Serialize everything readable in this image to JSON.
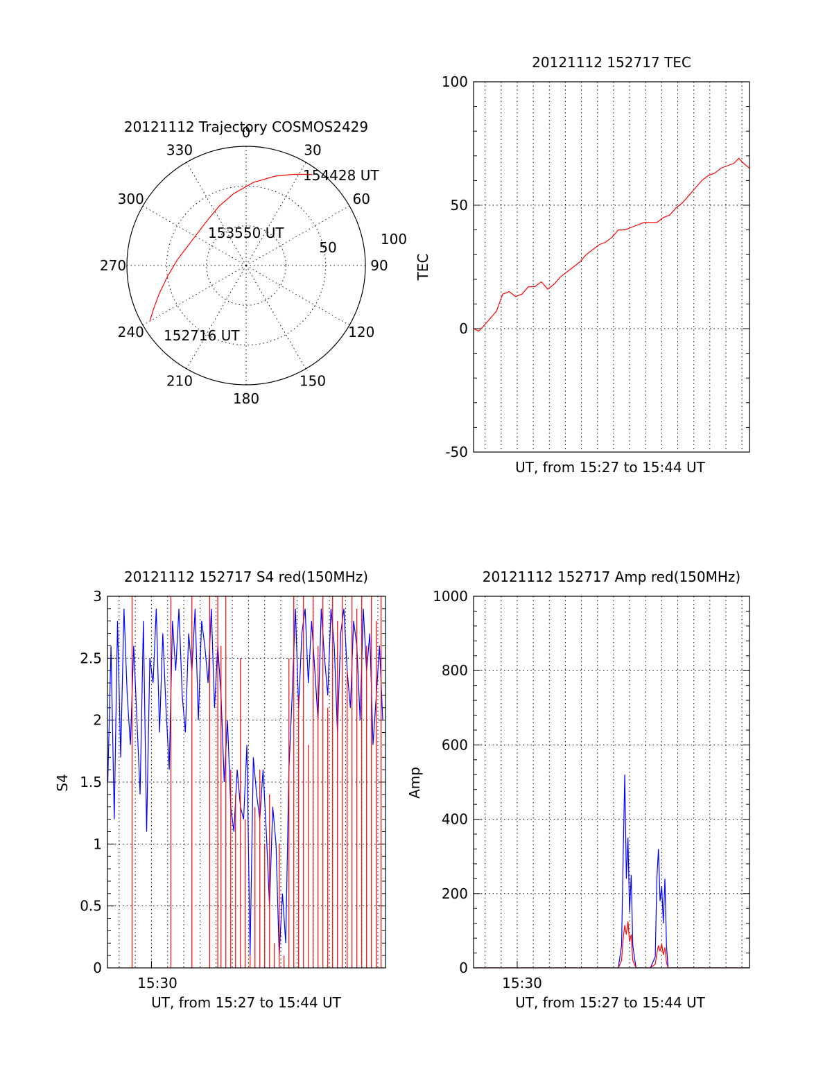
{
  "colors": {
    "red": "#ff0000",
    "blue": "#0000ff",
    "axis": "#000000"
  },
  "chart_data": [
    {
      "type": "polar",
      "title": "20121112 Trajectory COSMOS2429",
      "azimuth_labels": [
        "0",
        "30",
        "60",
        "90",
        "120",
        "150",
        "180",
        "210",
        "240",
        "270",
        "300",
        "330"
      ],
      "radial_labels": [
        "50",
        "100"
      ],
      "series": [
        {
          "color": "red",
          "points": [
            {
              "az": 240,
              "el": 6
            },
            {
              "az": 245,
              "el": 13
            },
            {
              "az": 252,
              "el": 21
            },
            {
              "az": 262,
              "el": 30
            },
            {
              "az": 275,
              "el": 38
            },
            {
              "az": 290,
              "el": 44
            },
            {
              "az": 305,
              "el": 46
            },
            {
              "az": 320,
              "el": 45
            },
            {
              "az": 335,
              "el": 41
            },
            {
              "az": 350,
              "el": 35
            },
            {
              "az": 5,
              "el": 27
            },
            {
              "az": 18,
              "el": 19
            },
            {
              "az": 28,
              "el": 12
            },
            {
              "az": 36,
              "el": 5
            }
          ]
        }
      ],
      "annotations": [
        "154428 UT",
        "153550 UT",
        "152716 UT"
      ]
    },
    {
      "type": "line",
      "title": "20121112 152717 TEC",
      "xlabel": "UT, from 15:27 to 15:44 UT",
      "ylabel": "TEC",
      "ylim": [
        -50,
        100
      ],
      "yticks": [
        "-50",
        "0",
        "50",
        "100"
      ],
      "xlim_minutes": [
        27.28,
        44.47
      ],
      "grid": true,
      "series": [
        {
          "color": "red",
          "x": [
            27.28,
            27.6,
            27.9,
            28.3,
            28.7,
            29.1,
            29.5,
            29.9,
            30.3,
            30.7,
            31.1,
            31.5,
            31.9,
            32.3,
            32.7,
            33.1,
            33.5,
            33.9,
            34.3,
            34.7,
            35.1,
            35.5,
            35.9,
            36.3,
            36.7,
            37.1,
            37.5,
            37.9,
            38.3,
            38.7,
            39.1,
            39.5,
            39.9,
            40.3,
            40.7,
            41.1,
            41.5,
            41.9,
            42.3,
            42.7,
            43.1,
            43.5,
            43.8,
            44.1,
            44.47
          ],
          "y": [
            0,
            -1,
            1,
            4,
            7,
            14,
            15,
            13,
            14,
            17,
            17,
            19,
            16,
            18,
            21,
            23,
            25,
            27,
            30,
            32,
            34,
            35,
            37,
            40,
            40,
            41,
            42,
            43,
            43,
            43,
            45,
            46,
            49,
            51,
            54,
            57,
            60,
            62,
            63,
            65,
            66,
            67,
            69,
            67,
            65
          ]
        }
      ]
    },
    {
      "type": "line",
      "title": "20121112 152717 S4 red(150MHz)",
      "xlabel": "UT, from 15:27 to 15:44 UT",
      "ylabel": "S4",
      "ylim": [
        0,
        3
      ],
      "yticks": [
        "0",
        "0.5",
        "1",
        "1.5",
        "2",
        "2.5",
        "3"
      ],
      "xtick_label": "15:30",
      "xlim_minutes": [
        27.28,
        44.47
      ],
      "grid": true,
      "series": [
        {
          "name": "blue",
          "color": "blue",
          "x": [
            27.3,
            27.5,
            27.7,
            27.9,
            28.1,
            28.3,
            28.5,
            28.7,
            28.9,
            29.1,
            29.3,
            29.5,
            29.7,
            29.9,
            30.1,
            30.3,
            30.5,
            30.7,
            30.9,
            31.1,
            31.3,
            31.5,
            31.7,
            31.9,
            32.1,
            32.3,
            32.5,
            32.7,
            32.9,
            33.1,
            33.3,
            33.5,
            33.7,
            33.9,
            34.1,
            34.3,
            34.5,
            34.7,
            34.9,
            35.1,
            35.3,
            35.5,
            35.7,
            35.9,
            36.1,
            36.3,
            36.5,
            36.7,
            36.9,
            37.1,
            37.3,
            37.5,
            37.7,
            37.9,
            38.1,
            38.3,
            38.5,
            38.7,
            38.9,
            39.1,
            39.3,
            39.5,
            39.7,
            39.9,
            40.1,
            40.3,
            40.5,
            40.7,
            40.9,
            41.1,
            41.3,
            41.5,
            41.7,
            41.9,
            42.1,
            42.3,
            42.5,
            42.7,
            42.9,
            43.1,
            43.3,
            43.5,
            43.7,
            43.9,
            44.1,
            44.3
          ],
          "y": [
            1.5,
            2.6,
            1.2,
            2.8,
            1.7,
            2.9,
            2.2,
            1.8,
            2.6,
            2.0,
            1.4,
            2.8,
            1.1,
            2.5,
            2.3,
            2.9,
            1.9,
            2.7,
            2.1,
            1.6,
            2.8,
            2.4,
            2.9,
            2.2,
            1.9,
            2.7,
            2.4,
            2.9,
            2.0,
            2.8,
            2.6,
            2.3,
            2.9,
            2.1,
            2.6,
            2.2,
            1.5,
            2.0,
            1.3,
            1.1,
            1.6,
            1.3,
            1.2,
            1.8,
            0.1,
            1.7,
            1.4,
            1.2,
            1.6,
            1.1,
            0.5,
            1.3,
            1.0,
            0.1,
            0.6,
            0.2,
            1.6,
            2.2,
            2.9,
            2.1,
            2.7,
            2.9,
            2.3,
            2.8,
            2.4,
            2.0,
            2.9,
            2.5,
            2.2,
            2.9,
            2.6,
            1.9,
            2.7,
            2.9,
            2.4,
            2.1,
            2.8,
            2.6,
            2.0,
            2.9,
            2.4,
            2.7,
            1.8,
            2.2,
            2.6,
            2.0
          ]
        },
        {
          "name": "red",
          "color": "red",
          "x": [
            28.8,
            31.2,
            32.5,
            33.6,
            34.1,
            34.3,
            34.6,
            34.9,
            35.2,
            35.5,
            35.8,
            36.1,
            36.4,
            36.7,
            37.0,
            37.3,
            37.6,
            37.9,
            38.2,
            38.5,
            38.8,
            39.1,
            39.4,
            39.7,
            40.0,
            40.3,
            40.6,
            40.9,
            41.2,
            41.5,
            41.8,
            42.1,
            42.4,
            42.7,
            43.0,
            43.3,
            43.6,
            43.9,
            44.2
          ],
          "y": [
            3.0,
            3.0,
            3.0,
            3.0,
            3.0,
            2.6,
            3.0,
            1.6,
            1.4,
            2.5,
            1.2,
            0.1,
            1.3,
            1.6,
            1.0,
            1.4,
            0.2,
            1.0,
            0.1,
            2.5,
            3.0,
            2.2,
            3.0,
            1.8,
            3.0,
            2.6,
            3.0,
            2.1,
            3.0,
            2.8,
            3.0,
            2.4,
            3.0,
            2.9,
            3.0,
            2.6,
            3.0,
            2.8,
            3.0
          ]
        }
      ]
    },
    {
      "type": "line",
      "title": "20121112 152717 Amp red(150MHz)",
      "xlabel": "UT, from 15:27 to 15:44 UT",
      "ylabel": "Amp",
      "ylim": [
        0,
        1000
      ],
      "yticks": [
        "0",
        "200",
        "400",
        "600",
        "800",
        "1000"
      ],
      "xtick_label": "15:30",
      "xlim_minutes": [
        27.28,
        44.47
      ],
      "grid": true,
      "series": [
        {
          "name": "blue",
          "color": "blue",
          "x": [
            27.3,
            36.3,
            36.5,
            36.6,
            36.7,
            36.8,
            36.9,
            37.0,
            37.1,
            37.2,
            37.4,
            37.6,
            38.3,
            38.6,
            38.7,
            38.8,
            38.9,
            39.0,
            39.1,
            39.2,
            39.3,
            39.4,
            39.6,
            44.47
          ],
          "y": [
            0,
            0,
            60,
            300,
            520,
            240,
            350,
            150,
            250,
            60,
            0,
            0,
            0,
            30,
            240,
            320,
            180,
            220,
            120,
            240,
            60,
            0,
            0,
            0
          ]
        },
        {
          "name": "red",
          "color": "red",
          "x": [
            27.3,
            36.3,
            36.5,
            36.6,
            36.7,
            36.8,
            36.9,
            37.0,
            37.1,
            37.2,
            37.4,
            37.6,
            38.3,
            38.6,
            38.7,
            38.8,
            38.9,
            39.0,
            39.1,
            39.2,
            39.3,
            39.4,
            39.6,
            44.47
          ],
          "y": [
            0,
            0,
            20,
            80,
            115,
            90,
            125,
            70,
            90,
            20,
            0,
            0,
            0,
            10,
            40,
            60,
            45,
            65,
            35,
            55,
            15,
            0,
            0,
            0
          ]
        }
      ]
    }
  ]
}
